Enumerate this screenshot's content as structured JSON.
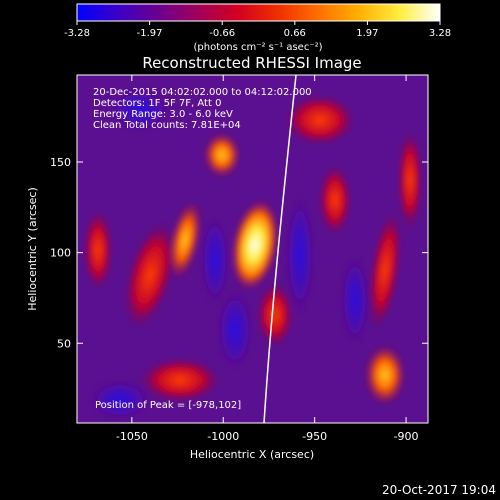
{
  "colorbar": {
    "tick_labels": [
      "-3.28",
      "-1.97",
      "-0.66",
      "0.66",
      "1.97",
      "3.28"
    ],
    "units_text": "(photons cm⁻² s⁻¹ asec⁻²)",
    "colormap": [
      "#0000ff",
      "#3a00c8",
      "#6a0090",
      "#a0005a",
      "#d4001e",
      "#f03000",
      "#ff7000",
      "#ffb000",
      "#ffee40",
      "#ffffff"
    ]
  },
  "image": {
    "title": "Reconstructed RHESSI Image",
    "info_lines": [
      "20-Dec-2015 04:02:02.000 to 04:12:02.000",
      "Detectors: 1F 5F 7F, Att 0",
      "Energy Range: 3.0 - 6.0 keV",
      "Clean     Total counts: 7.81E+04"
    ],
    "peak_text": "Position of Peak = [-978,102]",
    "xlabel": "Heliocentric X (arcsec)",
    "ylabel": "Heliocentric Y (arcsec)",
    "x_ticks": [
      "-1050",
      "-1000",
      "-950",
      "-900"
    ],
    "y_ticks": [
      "50",
      "100",
      "150"
    ],
    "x_tick_values": [
      -1050,
      -1000,
      -950,
      -900
    ],
    "y_tick_values": [
      50,
      100,
      150
    ],
    "xlim": [
      -1080,
      -888
    ],
    "ylim": [
      6,
      198
    ]
  },
  "footer": {
    "timestamp": "20-Oct-2017 19:04"
  }
}
